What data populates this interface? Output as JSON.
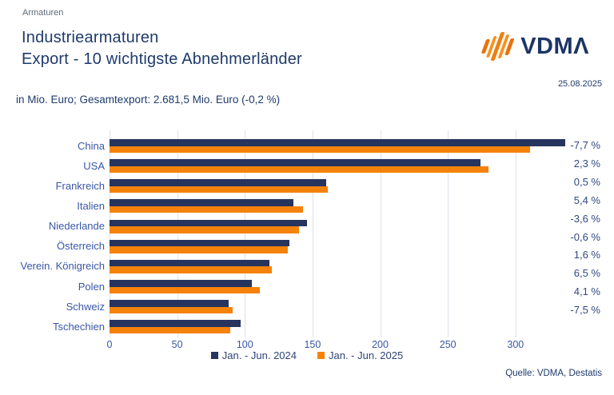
{
  "header": {
    "eyebrow": "Armaturen",
    "title_line1": "Industriearmaturen",
    "title_line2": "Export - 10 wichtigste Abnehmerländer",
    "subtitle": "in Mio. Euro; Gesamtexport: 2.681,5 Mio. Euro (-0,2 %)",
    "date": "25.08.2025",
    "logo_text": "VDMΛ"
  },
  "footer": {
    "source": "Quelle: VDMA, Destatis"
  },
  "colors": {
    "bar_2024_navy": "#26345E",
    "bar_2025_orange": "#F5820B",
    "label_blue": "#3A57A8",
    "title_navy": "#1F3A6B",
    "grid_gray": "#DCE1ED",
    "eyebrow_gray": "#5E6B78"
  },
  "chart_data": {
    "type": "bar",
    "orientation": "horizontal",
    "title": "Industriearmaturen Export - 10 wichtigste Abnehmerländer",
    "unit": "Mio. Euro",
    "categories": [
      "China",
      "USA",
      "Frankreich",
      "Italien",
      "Niederlande",
      "Österreich",
      "Verein. Königreich",
      "Polen",
      "Schweiz",
      "Tschechien"
    ],
    "series": [
      {
        "name": "Jan. - Jun. 2024",
        "color": "#26345E",
        "values": [
          337,
          274,
          160,
          136,
          146,
          133,
          118,
          105,
          88,
          97
        ]
      },
      {
        "name": "Jan. - Jun. 2025",
        "color": "#F5820B",
        "values": [
          311,
          280,
          161,
          143,
          140,
          132,
          120,
          111,
          91,
          89
        ]
      }
    ],
    "change_labels": [
      "-7,7 %",
      "2,3 %",
      "0,5 %",
      "5,4 %",
      "-3,6 %",
      "-0,6 %",
      "1,6 %",
      "6,5 %",
      "4,1 %",
      "-7,5 %"
    ],
    "x_ticks": [
      0,
      50,
      100,
      150,
      200,
      250,
      300
    ],
    "xlim": [
      0,
      340
    ],
    "grid": "vertical",
    "legend_position": "bottom"
  }
}
